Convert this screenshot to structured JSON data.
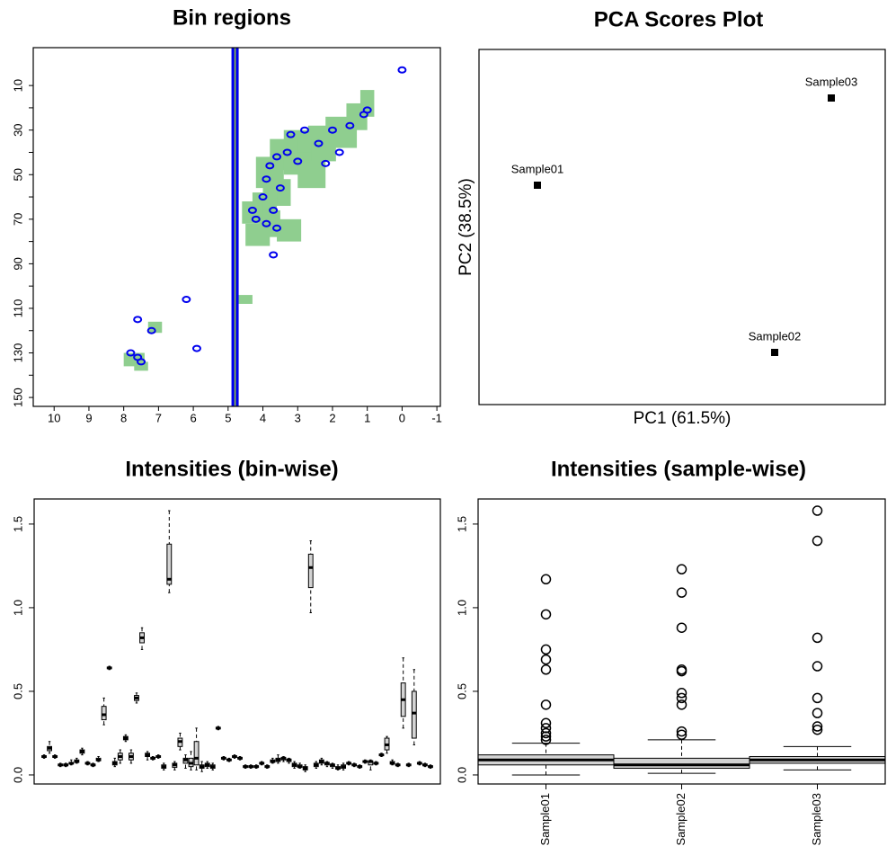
{
  "chart_data": [
    {
      "type": "contour",
      "title": "Bin regions",
      "xlim": [
        10.6,
        -1.1
      ],
      "xticks": [
        10,
        9,
        8,
        7,
        6,
        5,
        4,
        3,
        2,
        1,
        0,
        -1
      ],
      "ylim": [
        154,
        -7
      ],
      "yticks": [
        10,
        30,
        50,
        70,
        90,
        110,
        130,
        150
      ],
      "yticks_minor": [
        20,
        40,
        60,
        80,
        100,
        120,
        140
      ],
      "bin_color": "#8fce8f",
      "peak_color": "#0000ee",
      "bins": [
        [
          1.2,
          0.8,
          12,
          24
        ],
        [
          1.6,
          1.0,
          18,
          30
        ],
        [
          2.2,
          1.3,
          24,
          38
        ],
        [
          2.7,
          1.9,
          28,
          44
        ],
        [
          3.4,
          2.6,
          30,
          50
        ],
        [
          3.0,
          2.2,
          40,
          56
        ],
        [
          3.8,
          3.0,
          34,
          48
        ],
        [
          4.2,
          3.4,
          42,
          56
        ],
        [
          4.0,
          3.2,
          52,
          64
        ],
        [
          4.3,
          3.6,
          58,
          70
        ],
        [
          4.1,
          3.5,
          66,
          78
        ],
        [
          3.6,
          2.9,
          70,
          80
        ],
        [
          4.5,
          3.8,
          72,
          82
        ],
        [
          4.6,
          4.0,
          62,
          72
        ],
        [
          2.6,
          2.2,
          34,
          44
        ],
        [
          4.7,
          4.3,
          104,
          108
        ],
        [
          7.3,
          6.9,
          116,
          121
        ],
        [
          8.0,
          7.4,
          130,
          136
        ],
        [
          7.7,
          7.3,
          134,
          138
        ]
      ],
      "ridge_ppm": 4.8,
      "peaks": [
        [
          0.0,
          3
        ],
        [
          1.0,
          21
        ],
        [
          1.1,
          23
        ],
        [
          1.5,
          28
        ],
        [
          2.0,
          30
        ],
        [
          2.4,
          36
        ],
        [
          2.8,
          30
        ],
        [
          3.0,
          44
        ],
        [
          3.3,
          40
        ],
        [
          3.6,
          42
        ],
        [
          3.8,
          46
        ],
        [
          3.5,
          56
        ],
        [
          3.9,
          52
        ],
        [
          4.0,
          60
        ],
        [
          3.7,
          66
        ],
        [
          4.2,
          70
        ],
        [
          3.9,
          72
        ],
        [
          3.6,
          74
        ],
        [
          4.3,
          66
        ],
        [
          2.2,
          45
        ],
        [
          3.2,
          32
        ],
        [
          7.6,
          115
        ],
        [
          7.2,
          120
        ],
        [
          7.8,
          130
        ],
        [
          7.6,
          132
        ],
        [
          7.5,
          134
        ],
        [
          6.2,
          106
        ],
        [
          5.9,
          128
        ],
        [
          3.7,
          86
        ],
        [
          1.8,
          40
        ]
      ]
    },
    {
      "type": "scatter",
      "title": "PCA Scores Plot",
      "x_label": "PC1 (61.5%)",
      "y_label": "PC2 (38.5%)",
      "labels": [
        "Sample01",
        "Sample02",
        "Sample03"
      ],
      "x": [
        -1.97,
        0.67,
        1.3
      ],
      "y": [
        0.3,
        -1.56,
        1.27
      ],
      "xlim": [
        -2.62,
        1.9
      ],
      "ylim": [
        -2.14,
        1.81
      ],
      "color": "#000000"
    },
    {
      "type": "box",
      "title": "Intensities (bin-wise)",
      "ylim": [
        -0.054,
        1.65
      ],
      "yticks": [
        {
          "value": 0,
          "label": "0.0"
        },
        0.5,
        {
          "value": 1,
          "label": "1.0"
        },
        1.5
      ],
      "color": "#d3d3d3",
      "categories": [
        null,
        null,
        null,
        null,
        null,
        null,
        null,
        null,
        null,
        null,
        null,
        null,
        null,
        null,
        null,
        null,
        null,
        null,
        null,
        null,
        null,
        null,
        null,
        null,
        null,
        null,
        null,
        null,
        null,
        null,
        null,
        null,
        null,
        null,
        null,
        null,
        null,
        null,
        null,
        null,
        null,
        null,
        null,
        null,
        null,
        null,
        null,
        null,
        null,
        null,
        null,
        null,
        null,
        null,
        null,
        null,
        null,
        null,
        null,
        null,
        null,
        null,
        null,
        null,
        null,
        null,
        null,
        null,
        null,
        null,
        null,
        null
      ],
      "boxes": [
        [
          0.1,
          0.105,
          0.11,
          0.115,
          0.12
        ],
        [
          0.13,
          0.145,
          0.16,
          0.17,
          0.2
        ],
        [
          0.1,
          0.105,
          0.11,
          0.115,
          0.12
        ],
        [
          0.05,
          0.055,
          0.06,
          0.065,
          0.07
        ],
        [
          0.05,
          0.055,
          0.06,
          0.065,
          0.07
        ],
        [
          0.06,
          0.065,
          0.07,
          0.075,
          0.09
        ],
        [
          0.07,
          0.075,
          0.08,
          0.09,
          0.1
        ],
        [
          0.12,
          0.13,
          0.14,
          0.15,
          0.16
        ],
        [
          0.06,
          0.065,
          0.07,
          0.075,
          0.08
        ],
        [
          0.05,
          0.055,
          0.06,
          0.065,
          0.07
        ],
        [
          0.08,
          0.085,
          0.09,
          0.1,
          0.11
        ],
        [
          0.3,
          0.33,
          0.36,
          0.41,
          0.46
        ],
        [
          0.63,
          0.635,
          0.64,
          0.645,
          0.65
        ],
        [
          0.05,
          0.06,
          0.07,
          0.08,
          0.1
        ],
        [
          0.07,
          0.09,
          0.11,
          0.13,
          0.15
        ],
        [
          0.2,
          0.21,
          0.22,
          0.23,
          0.24
        ],
        [
          0.07,
          0.09,
          0.11,
          0.13,
          0.15
        ],
        [
          0.43,
          0.445,
          0.46,
          0.475,
          0.49
        ],
        [
          0.75,
          0.79,
          0.82,
          0.85,
          0.88
        ],
        [
          0.09,
          0.11,
          0.12,
          0.13,
          0.14
        ],
        [
          0.09,
          0.095,
          0.1,
          0.105,
          0.11
        ],
        [
          0.1,
          0.105,
          0.11,
          0.115,
          0.12
        ],
        [
          0.03,
          0.04,
          0.05,
          0.06,
          0.07
        ],
        [
          1.09,
          1.14,
          1.17,
          1.38,
          1.58
        ],
        [
          0.03,
          0.045,
          0.06,
          0.07,
          0.08
        ],
        [
          0.15,
          0.17,
          0.2,
          0.22,
          0.25
        ],
        [
          0.04,
          0.07,
          0.09,
          0.1,
          0.12
        ],
        [
          0.03,
          0.05,
          0.07,
          0.1,
          0.14
        ],
        [
          0.03,
          0.06,
          0.1,
          0.2,
          0.28
        ],
        [
          0.02,
          0.04,
          0.05,
          0.06,
          0.08
        ],
        [
          0.04,
          0.05,
          0.06,
          0.07,
          0.08
        ],
        [
          0.03,
          0.04,
          0.05,
          0.06,
          0.07
        ],
        [
          0.27,
          0.275,
          0.28,
          0.285,
          0.29
        ],
        [
          0.09,
          0.095,
          0.1,
          0.105,
          0.11
        ],
        [
          0.08,
          0.085,
          0.09,
          0.095,
          0.1
        ],
        [
          0.1,
          0.105,
          0.11,
          0.115,
          0.12
        ],
        [
          0.09,
          0.095,
          0.1,
          0.105,
          0.11
        ],
        [
          0.04,
          0.045,
          0.05,
          0.055,
          0.06
        ],
        [
          0.04,
          0.045,
          0.05,
          0.055,
          0.06
        ],
        [
          0.04,
          0.045,
          0.05,
          0.055,
          0.06
        ],
        [
          0.06,
          0.065,
          0.07,
          0.075,
          0.08
        ],
        [
          0.04,
          0.045,
          0.05,
          0.055,
          0.06
        ],
        [
          0.07,
          0.075,
          0.08,
          0.09,
          0.1
        ],
        [
          0.07,
          0.08,
          0.09,
          0.1,
          0.12
        ],
        [
          0.08,
          0.09,
          0.1,
          0.105,
          0.11
        ],
        [
          0.07,
          0.08,
          0.09,
          0.095,
          0.1
        ],
        [
          0.04,
          0.05,
          0.06,
          0.07,
          0.08
        ],
        [
          0.04,
          0.045,
          0.05,
          0.06,
          0.07
        ],
        [
          0.02,
          0.03,
          0.04,
          0.05,
          0.06
        ],
        [
          0.97,
          1.12,
          1.24,
          1.32,
          1.4
        ],
        [
          0.04,
          0.05,
          0.06,
          0.07,
          0.08
        ],
        [
          0.06,
          0.07,
          0.08,
          0.09,
          0.1
        ],
        [
          0.05,
          0.06,
          0.07,
          0.075,
          0.08
        ],
        [
          0.04,
          0.05,
          0.06,
          0.065,
          0.07
        ],
        [
          0.03,
          0.035,
          0.04,
          0.05,
          0.06
        ],
        [
          0.03,
          0.04,
          0.05,
          0.06,
          0.07
        ],
        [
          0.06,
          0.065,
          0.07,
          0.075,
          0.08
        ],
        [
          0.05,
          0.055,
          0.06,
          0.065,
          0.07
        ],
        [
          0.04,
          0.045,
          0.05,
          0.055,
          0.06
        ],
        [
          0.07,
          0.075,
          0.08,
          0.085,
          0.09
        ],
        [
          0.03,
          0.06,
          0.08,
          0.085,
          0.09
        ],
        [
          0.06,
          0.065,
          0.07,
          0.075,
          0.08
        ],
        [
          0.11,
          0.115,
          0.12,
          0.125,
          0.13
        ],
        [
          0.13,
          0.15,
          0.18,
          0.22,
          0.23
        ],
        [
          0.06,
          0.065,
          0.07,
          0.08,
          0.09
        ],
        [
          0.05,
          0.055,
          0.06,
          0.065,
          0.07
        ],
        [
          0.28,
          0.35,
          0.45,
          0.55,
          0.7
        ],
        [
          0.05,
          0.055,
          0.06,
          0.065,
          0.07
        ],
        [
          0.18,
          0.22,
          0.37,
          0.5,
          0.63
        ],
        [
          0.06,
          0.065,
          0.07,
          0.075,
          0.08
        ],
        [
          0.05,
          0.055,
          0.06,
          0.065,
          0.07
        ],
        [
          0.04,
          0.045,
          0.05,
          0.055,
          0.06
        ]
      ]
    },
    {
      "type": "box",
      "title": "Intensities (sample-wise)",
      "ylim": [
        -0.054,
        1.65
      ],
      "yticks": [
        {
          "value": 0,
          "label": "0.0"
        },
        0.5,
        {
          "value": 1,
          "label": "1.0"
        },
        1.5
      ],
      "color": "#d3d3d3",
      "categories": [
        "Sample01",
        "Sample02",
        "Sample03"
      ],
      "boxes": [
        [
          0.0,
          0.06,
          0.09,
          0.12,
          0.19
        ],
        [
          0.01,
          0.04,
          0.06,
          0.1,
          0.21
        ],
        [
          0.03,
          0.07,
          0.09,
          0.11,
          0.17
        ]
      ],
      "outliers": [
        [
          0.21,
          0.23,
          0.25,
          0.28,
          0.31,
          0.42,
          0.63,
          0.69,
          0.75,
          0.96,
          1.17
        ],
        [
          0.24,
          0.26,
          0.42,
          0.46,
          0.49,
          0.62,
          0.63,
          0.88,
          1.09,
          1.23
        ],
        [
          0.27,
          0.29,
          0.37,
          0.46,
          0.65,
          0.82,
          1.4,
          1.58
        ]
      ]
    }
  ]
}
